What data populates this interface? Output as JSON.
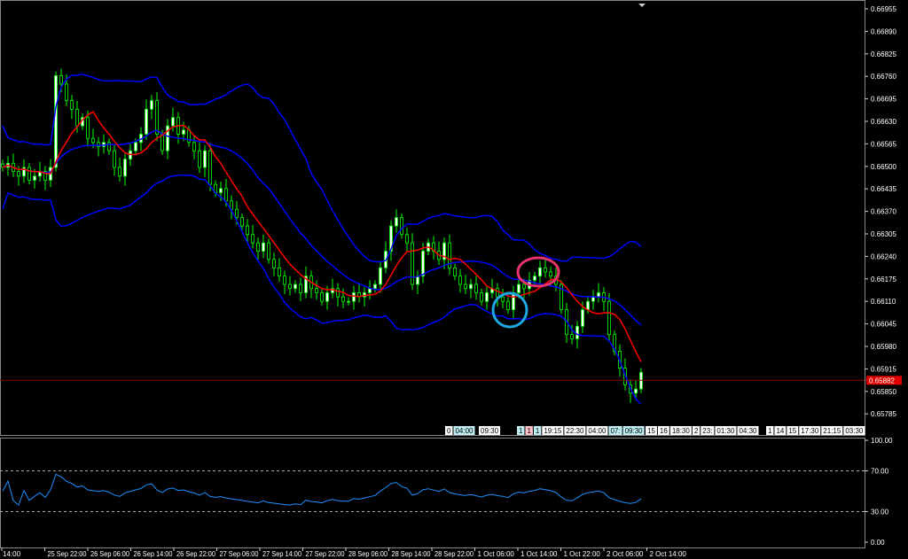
{
  "chart_data": {
    "type": "candlestick",
    "timeframe_note": "",
    "price_axis_ticks": [
      "0.66955",
      "0.66890",
      "0.66825",
      "0.66760",
      "0.66695",
      "0.66630",
      "0.66565",
      "0.66500",
      "0.66435",
      "0.66370",
      "0.66305",
      "0.66240",
      "0.66175",
      "0.66110",
      "0.66045",
      "0.65980",
      "0.65915",
      "0.65850",
      "0.65785"
    ],
    "ylim": [
      0.6577,
      0.6697
    ],
    "current_price": "0.65882",
    "time_axis_ticks": [
      "14:00",
      "25 Sep 22:00",
      "26 Sep 06:00",
      "26 Sep 14:00",
      "26 Sep 22:00",
      "27 Sep 06:00",
      "27 Sep 14:00",
      "27 Sep 22:00",
      "28 Sep 06:00",
      "28 Sep 14:00",
      "28 Sep 22:00",
      "1 Oct 06:00",
      "1 Oct 14:00",
      "1 Oct 22:00",
      "2 Oct 06:00",
      "2 Oct 14:00"
    ],
    "closes": [
      0.66497,
      0.66509,
      0.66485,
      0.66472,
      0.66497,
      0.6646,
      0.66472,
      0.66485,
      0.6646,
      0.66497,
      0.66762,
      0.66738,
      0.6669,
      0.66665,
      0.66617,
      0.66641,
      0.66581,
      0.66569,
      0.66557,
      0.66569,
      0.66545,
      0.66497,
      0.66472,
      0.66521,
      0.66545,
      0.66569,
      0.66593,
      0.66665,
      0.6669,
      0.66593,
      0.66545,
      0.66617,
      0.66641,
      0.66593,
      0.66605,
      0.66569,
      0.66545,
      0.66497,
      0.66545,
      0.66448,
      0.66424,
      0.66436,
      0.664,
      0.66376,
      0.66352,
      0.66328,
      0.66303,
      0.66279,
      0.66255,
      0.66279,
      0.66231,
      0.66207,
      0.66183,
      0.66159,
      0.66147,
      0.66159,
      0.66135,
      0.66183,
      0.66147,
      0.66135,
      0.6611,
      0.66135,
      0.66147,
      0.66123,
      0.6611,
      0.6611,
      0.66135,
      0.66123,
      0.66135,
      0.66147,
      0.66159,
      0.66207,
      0.66255,
      0.66328,
      0.66352,
      0.66303,
      0.66279,
      0.66159,
      0.66183,
      0.66255,
      0.66279,
      0.66255,
      0.66231,
      0.66279,
      0.66207,
      0.66183,
      0.66159,
      0.66147,
      0.66159,
      0.66135,
      0.6611,
      0.66135,
      0.66147,
      0.66123,
      0.6611,
      0.66086,
      0.66135,
      0.66159,
      0.66147,
      0.66171,
      0.66183,
      0.66207,
      0.66195,
      0.66183,
      0.66159,
      0.66086,
      0.66014,
      0.66002,
      0.66038,
      0.66086,
      0.6611,
      0.66123,
      0.66135,
      0.6611,
      0.66014,
      0.65966,
      0.65917,
      0.65869,
      0.65845,
      0.65857,
      0.65905
    ],
    "indicators": [
      "Bollinger Bands",
      "Moving Average",
      "RSI"
    ],
    "oscillator_ticks": [
      "100.00",
      "70.00",
      "30.00",
      "0.00"
    ],
    "oscillator_levels": [
      70,
      30
    ],
    "colors": {
      "bull": "#00ff00",
      "bull_body": "#ffffff",
      "bands": "#0000ff",
      "ma": "#ff0000",
      "rsi": "#1e90ff",
      "price_line": "#8b0000",
      "annotation_cyan": "#1ea7e1",
      "annotation_pink": "#e8336d"
    }
  },
  "time_markers": [
    "0",
    "04:00",
    "09:30",
    "1",
    "1",
    "1",
    "19:15",
    "22:30",
    "04:00",
    "07:",
    "09:30",
    "15",
    "16",
    "18:30",
    "2",
    "23:",
    "01:30",
    "04:30",
    "1",
    "14",
    "15",
    "17:30",
    "21:15",
    "03:30"
  ]
}
